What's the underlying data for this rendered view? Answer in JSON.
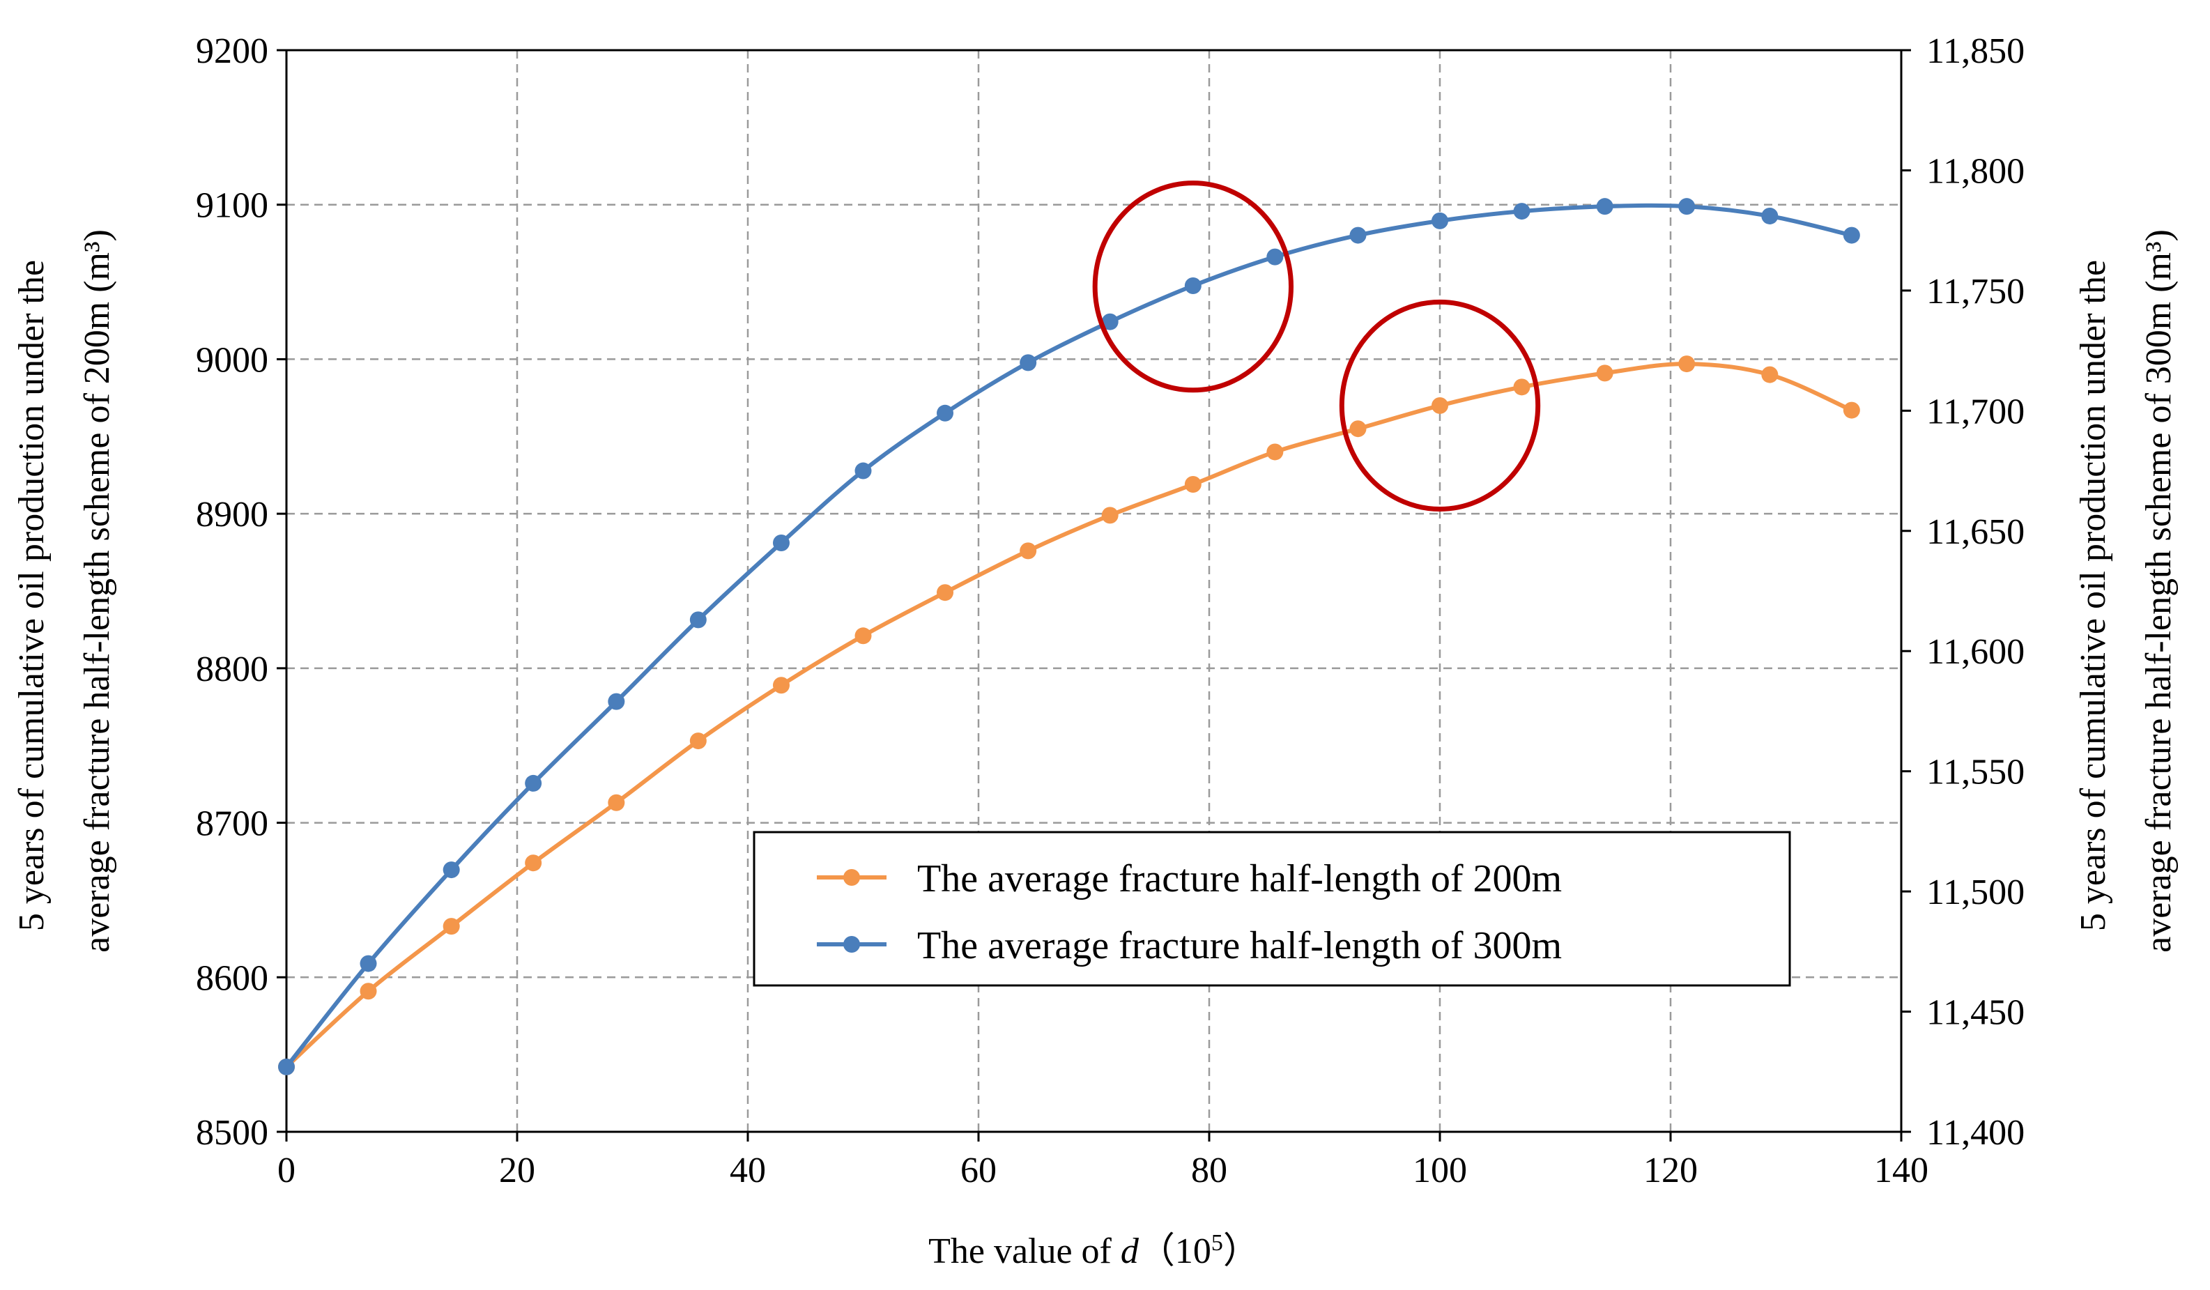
{
  "chart_data": {
    "type": "line",
    "title": "",
    "xlabel": {
      "prefix": "The value of ",
      "var": "d",
      "unit_open": "（10",
      "unit_exp": "5",
      "unit_close": "）"
    },
    "ylabel_left": [
      "5 years of cumulative oil production under the",
      "average fracture half-length scheme of 200m (m³)"
    ],
    "ylabel_right": [
      "5 years of cumulative oil production under the",
      "average fracture half-length scheme of  300m (m³)"
    ],
    "xlim": [
      0,
      140
    ],
    "ylim_left": [
      8500,
      9200
    ],
    "ylim_right": [
      11400,
      11850
    ],
    "x_ticks": [
      0,
      20,
      40,
      60,
      80,
      100,
      120,
      140
    ],
    "x_tick_labels": [
      "0",
      "20",
      "40",
      "60",
      "80",
      "100",
      "120",
      "140"
    ],
    "y_left_ticks": [
      8500,
      8600,
      8700,
      8800,
      8900,
      9000,
      9100,
      9200
    ],
    "y_left_tick_labels": [
      "8500",
      "8600",
      "8700",
      "8800",
      "8900",
      "9000",
      "9100",
      "9200"
    ],
    "y_right_ticks": [
      11400,
      11450,
      11500,
      11550,
      11600,
      11650,
      11700,
      11750,
      11800,
      11850
    ],
    "y_right_tick_labels": [
      "11,400",
      "11,450",
      "11,500",
      "11,550",
      "11,600",
      "11,650",
      "11,700",
      "11,750",
      "11,800",
      "11,850"
    ],
    "grid": true,
    "legend_position": "lower-right",
    "series": [
      {
        "name": "The average fracture half-length of 200m",
        "axis": "left",
        "color": "#F4964A",
        "x": [
          0,
          7.1,
          14.3,
          21.4,
          28.6,
          35.7,
          42.9,
          50,
          57.1,
          64.3,
          71.4,
          78.6,
          85.7,
          92.9,
          100,
          107.1,
          114.3,
          121.4,
          128.6,
          135.7
        ],
        "values": [
          8542,
          8591,
          8633,
          8674,
          8713,
          8753,
          8789,
          8821,
          8849,
          8876,
          8899,
          8919,
          8940,
          8955,
          8970,
          8982,
          8991,
          8997,
          8990,
          8967
        ]
      },
      {
        "name": "The average fracture half-length of 300m",
        "axis": "right",
        "color": "#4A7EBB",
        "x": [
          0,
          7.1,
          14.3,
          21.4,
          28.6,
          35.7,
          42.9,
          50,
          57.1,
          64.3,
          71.4,
          78.6,
          85.7,
          92.9,
          100,
          107.1,
          114.3,
          121.4,
          128.6,
          135.7
        ],
        "values": [
          11427,
          11470,
          11509,
          11545,
          11579,
          11613,
          11645,
          11675,
          11699,
          11720,
          11737,
          11752,
          11764,
          11773,
          11779,
          11783,
          11785,
          11785,
          11781,
          11773
        ]
      }
    ],
    "annotations": [
      {
        "type": "ellipse",
        "color": "#C00000",
        "center_x": 78.6,
        "center_y_left": 9047,
        "rx_data": 8.5,
        "ry_left": 67
      },
      {
        "type": "ellipse",
        "color": "#C00000",
        "center_x": 100,
        "center_y_left": 8970,
        "rx_data": 8.5,
        "ry_left": 67
      }
    ]
  }
}
